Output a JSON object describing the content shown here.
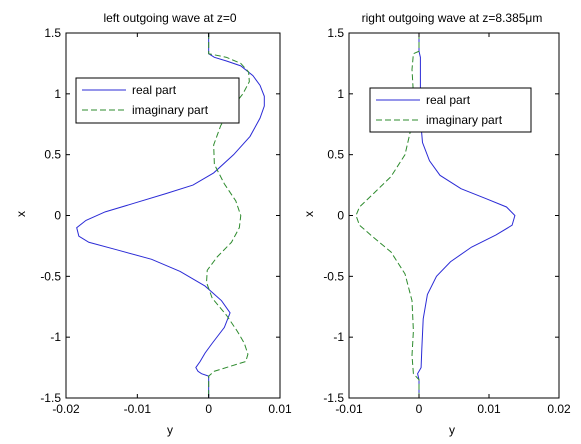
{
  "chart_data": [
    {
      "type": "line",
      "title": "left outgoing wave at z=0",
      "xlabel": "y",
      "ylabel": "x",
      "xlim": [
        -0.02,
        0.01
      ],
      "ylim": [
        -1.5,
        1.5
      ],
      "xticks": [
        -0.02,
        -0.01,
        0,
        0.01
      ],
      "xtick_labels": [
        "-0.02",
        "-0.01",
        "0",
        "0.01"
      ],
      "yticks": [
        -1.5,
        -1,
        -0.5,
        0,
        0.5,
        1,
        1.5
      ],
      "ytick_labels": [
        "-1.5",
        "-1",
        "-0.5",
        "0",
        "0.5",
        "1",
        "1.5"
      ],
      "grid": false,
      "legend_position": "top-left",
      "series": [
        {
          "name": "real part",
          "color": "#2b2bd6",
          "dash": "solid",
          "points": [
            [
              0,
              1.5
            ],
            [
              0,
              1.33
            ],
            [
              0.0008,
              1.3
            ],
            [
              0.0025,
              1.27
            ],
            [
              0.0045,
              1.23
            ],
            [
              0.0062,
              1.15
            ],
            [
              0.0072,
              1.07
            ],
            [
              0.0078,
              0.98
            ],
            [
              0.0078,
              0.9
            ],
            [
              0.0072,
              0.8
            ],
            [
              0.0058,
              0.65
            ],
            [
              0.0035,
              0.5
            ],
            [
              0.0007,
              0.35
            ],
            [
              -0.0022,
              0.25
            ],
            [
              -0.006,
              0.18
            ],
            [
              -0.0105,
              0.1
            ],
            [
              -0.0145,
              0.03
            ],
            [
              -0.0172,
              -0.04
            ],
            [
              -0.0185,
              -0.1
            ],
            [
              -0.0182,
              -0.17
            ],
            [
              -0.0168,
              -0.22
            ],
            [
              -0.013,
              -0.28
            ],
            [
              -0.008,
              -0.36
            ],
            [
              -0.004,
              -0.46
            ],
            [
              -0.0005,
              -0.58
            ],
            [
              0.0018,
              -0.7
            ],
            [
              0.003,
              -0.8
            ],
            [
              0.0022,
              -0.92
            ],
            [
              0.0005,
              -1.05
            ],
            [
              -0.0005,
              -1.13
            ],
            [
              -0.0012,
              -1.2
            ],
            [
              -0.0018,
              -1.25
            ],
            [
              -0.0015,
              -1.28
            ],
            [
              -0.001,
              -1.3
            ],
            [
              0,
              -1.32
            ],
            [
              0,
              -1.5
            ]
          ]
        },
        {
          "name": "imaginary part",
          "color": "#2e8b2e",
          "dash": "dashed",
          "points": [
            [
              0,
              1.5
            ],
            [
              0,
              1.33
            ],
            [
              0.0025,
              1.3
            ],
            [
              0.0045,
              1.25
            ],
            [
              0.0056,
              1.18
            ],
            [
              0.0057,
              1.1
            ],
            [
              0.0048,
              1.0
            ],
            [
              0.0032,
              0.88
            ],
            [
              0.0017,
              0.74
            ],
            [
              0.0007,
              0.58
            ],
            [
              0.0008,
              0.42
            ],
            [
              0.0022,
              0.26
            ],
            [
              0.0038,
              0.12
            ],
            [
              0.0045,
              0.0
            ],
            [
              0.0043,
              -0.1
            ],
            [
              0.0032,
              -0.22
            ],
            [
              0.0012,
              -0.34
            ],
            [
              -0.0002,
              -0.45
            ],
            [
              -0.0003,
              -0.55
            ],
            [
              0.0005,
              -0.68
            ],
            [
              0.0025,
              -0.82
            ],
            [
              0.004,
              -0.95
            ],
            [
              0.005,
              -1.05
            ],
            [
              0.0055,
              -1.14
            ],
            [
              0.0052,
              -1.2
            ],
            [
              0.003,
              -1.24
            ],
            [
              0.0008,
              -1.28
            ],
            [
              0,
              -1.32
            ],
            [
              0,
              -1.5
            ]
          ]
        }
      ]
    },
    {
      "type": "line",
      "title": "right outgoing wave at z=8.385μm",
      "xlabel": "y",
      "ylabel": "x",
      "xlim": [
        -0.01,
        0.02
      ],
      "ylim": [
        -1.5,
        1.5
      ],
      "xticks": [
        -0.01,
        0,
        0.01,
        0.02
      ],
      "xtick_labels": [
        "-0.01",
        "0",
        "0.01",
        "0.02"
      ],
      "yticks": [
        -1.5,
        -1,
        -0.5,
        0,
        0.5,
        1,
        1.5
      ],
      "ytick_labels": [
        "-1.5",
        "-1",
        "-0.5",
        "0",
        "0.5",
        "1",
        "1.5"
      ],
      "grid": false,
      "legend_position": "top-left",
      "series": [
        {
          "name": "real part",
          "color": "#2b2bd6",
          "dash": "solid",
          "points": [
            [
              0,
              1.5
            ],
            [
              0,
              1.35
            ],
            [
              0.0002,
              1.3
            ],
            [
              0.0002,
              0.8
            ],
            [
              0.0005,
              0.6
            ],
            [
              0.0015,
              0.45
            ],
            [
              0.003,
              0.33
            ],
            [
              0.006,
              0.22
            ],
            [
              0.0095,
              0.14
            ],
            [
              0.0125,
              0.07
            ],
            [
              0.0137,
              0.0
            ],
            [
              0.0133,
              -0.08
            ],
            [
              0.011,
              -0.16
            ],
            [
              0.0075,
              -0.26
            ],
            [
              0.0045,
              -0.38
            ],
            [
              0.0025,
              -0.5
            ],
            [
              0.0012,
              -0.65
            ],
            [
              0.0006,
              -0.85
            ],
            [
              0.0004,
              -1.1
            ],
            [
              0.0003,
              -1.25
            ],
            [
              -0.0002,
              -1.3
            ],
            [
              0,
              -1.35
            ],
            [
              0,
              -1.5
            ]
          ]
        },
        {
          "name": "imaginary part",
          "color": "#2e8b2e",
          "dash": "dashed",
          "points": [
            [
              0,
              1.5
            ],
            [
              0,
              1.35
            ],
            [
              -0.0008,
              1.33
            ],
            [
              -0.001,
              1.2
            ],
            [
              -0.0008,
              1.0
            ],
            [
              -0.001,
              0.75
            ],
            [
              -0.002,
              0.5
            ],
            [
              -0.004,
              0.32
            ],
            [
              -0.0065,
              0.18
            ],
            [
              -0.0085,
              0.07
            ],
            [
              -0.009,
              0.0
            ],
            [
              -0.0085,
              -0.08
            ],
            [
              -0.0065,
              -0.18
            ],
            [
              -0.004,
              -0.3
            ],
            [
              -0.002,
              -0.48
            ],
            [
              -0.001,
              -0.7
            ],
            [
              -0.0008,
              -0.95
            ],
            [
              -0.001,
              -1.15
            ],
            [
              -0.0008,
              -1.3
            ],
            [
              0,
              -1.35
            ],
            [
              0,
              -1.5
            ]
          ]
        }
      ]
    }
  ]
}
